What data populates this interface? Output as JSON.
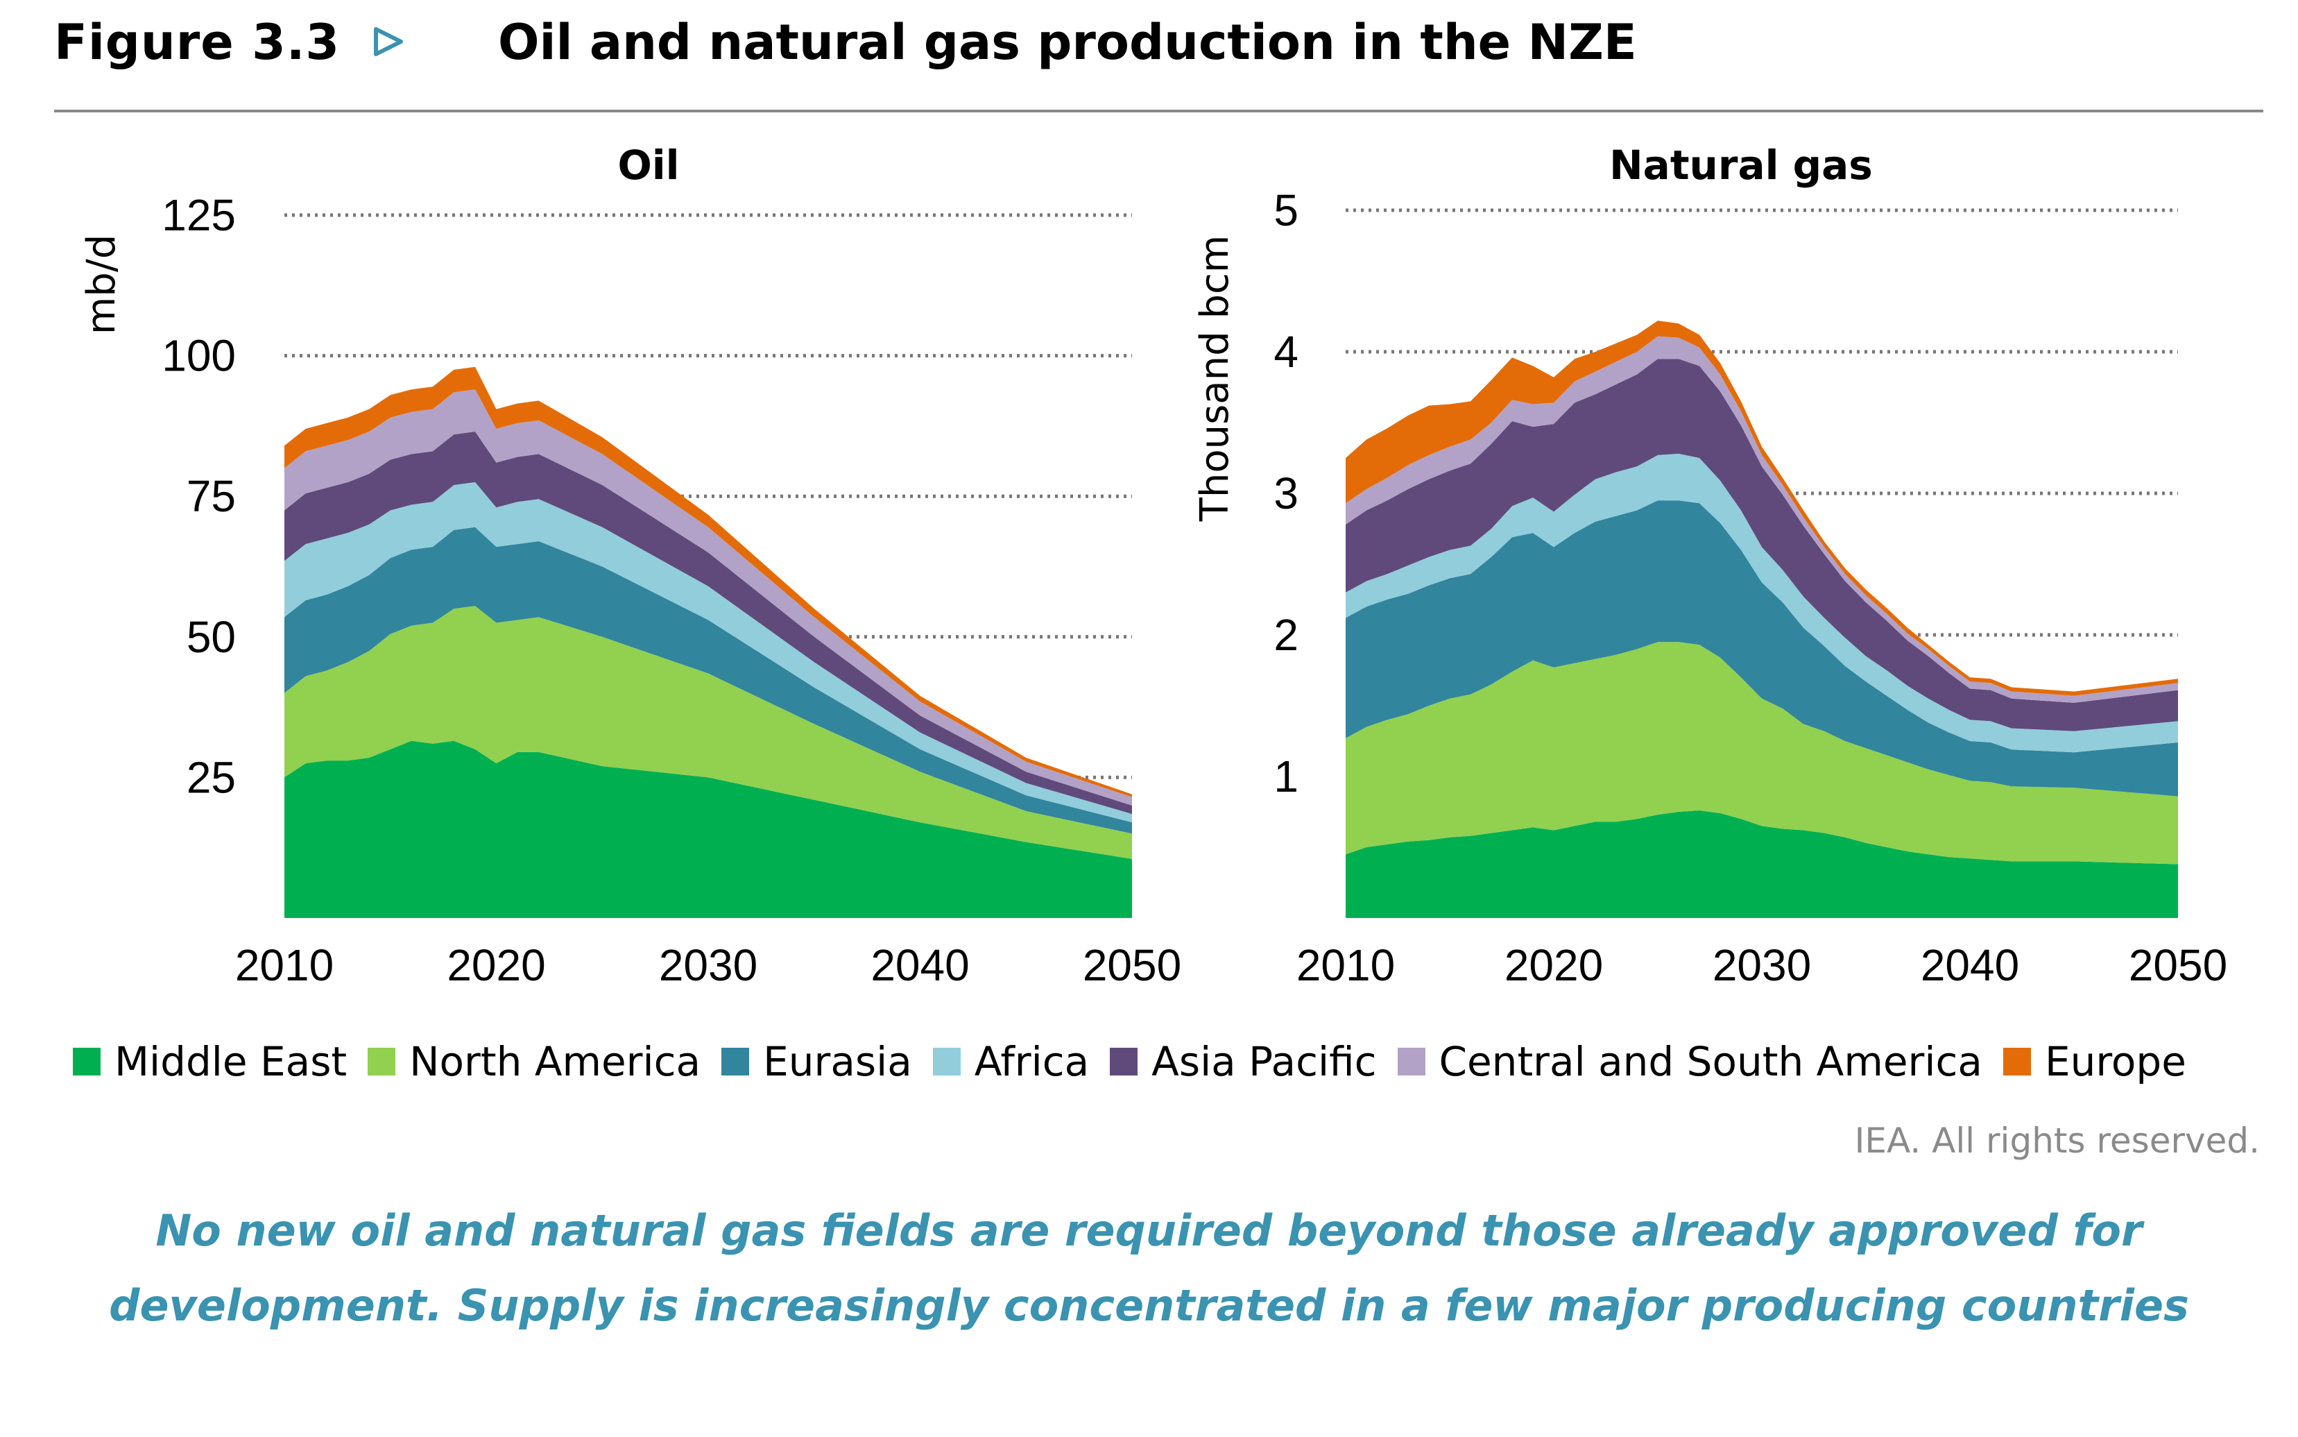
{
  "header": {
    "figure_label": "Figure 3.3",
    "title": "Oil and natural gas production in the NZE",
    "accent_color": "#3a93b0"
  },
  "legend": [
    {
      "name": "Middle East",
      "color": "#00b050"
    },
    {
      "name": "North America",
      "color": "#92d050"
    },
    {
      "name": "Eurasia",
      "color": "#31859c"
    },
    {
      "name": "Africa",
      "color": "#92cddc"
    },
    {
      "name": "Asia Pacific",
      "color": "#604a7b"
    },
    {
      "name": "Central and South America",
      "color": "#b3a2c7"
    },
    {
      "name": "Europe",
      "color": "#e36c09"
    }
  ],
  "chart_data": [
    {
      "type": "area",
      "stacked": true,
      "title": "Oil",
      "ylabel": "mb/d",
      "xlabel": "",
      "xlim": [
        2010,
        2050
      ],
      "ylim": [
        0,
        125
      ],
      "xticks": [
        2010,
        2020,
        2030,
        2040,
        2050
      ],
      "yticks": [
        25,
        50,
        75,
        100,
        125
      ],
      "grid": "horizontal dotted",
      "x": [
        2010,
        2011,
        2012,
        2013,
        2014,
        2015,
        2016,
        2017,
        2018,
        2019,
        2020,
        2021,
        2022,
        2025,
        2030,
        2035,
        2040,
        2045,
        2050
      ],
      "series": [
        {
          "name": "Middle East",
          "values": [
            25,
            27.5,
            28,
            28,
            28.5,
            30,
            31.5,
            31,
            31.5,
            30,
            27.5,
            29.5,
            29.5,
            27,
            25,
            21,
            17,
            13.5,
            10.5
          ]
        },
        {
          "name": "North America",
          "values": [
            15,
            15.5,
            16,
            17.5,
            19,
            20.5,
            20.5,
            21.5,
            23.5,
            25.5,
            25,
            23.5,
            24,
            23,
            18.5,
            13.5,
            9,
            5.5,
            4.5
          ]
        },
        {
          "name": "Eurasia",
          "values": [
            13.5,
            13.5,
            13.5,
            13.5,
            13.5,
            13.5,
            13.5,
            13.5,
            14,
            14,
            13.5,
            13.5,
            13.5,
            12.5,
            9.5,
            6.5,
            4,
            2.8,
            2
          ]
        },
        {
          "name": "Africa",
          "values": [
            10,
            10,
            10,
            9.5,
            9,
            8.5,
            8,
            8,
            8,
            8,
            7,
            7.5,
            7.5,
            7,
            6,
            4.5,
            3,
            2.2,
            1.5
          ]
        },
        {
          "name": "Asia Pacific",
          "values": [
            9,
            9,
            9,
            9,
            9,
            9,
            9,
            9,
            9,
            9,
            8,
            8,
            8,
            7.5,
            6,
            4.5,
            3,
            2,
            1.5
          ]
        },
        {
          "name": "Central and South America",
          "values": [
            7.5,
            7.5,
            7.5,
            7.5,
            7.5,
            7.5,
            7.5,
            7.5,
            7.5,
            7.5,
            6,
            6,
            6,
            5.5,
            4.5,
            3.5,
            2.5,
            1.8,
            1.5
          ]
        },
        {
          "name": "Europe",
          "values": [
            4,
            4,
            4,
            4,
            4,
            4,
            4,
            4,
            4,
            4,
            3.5,
            3.5,
            3.5,
            3,
            2.2,
            1.5,
            1,
            0.7,
            0.5
          ]
        }
      ]
    },
    {
      "type": "area",
      "stacked": true,
      "title": "Natural gas",
      "ylabel": "Thousand bcm",
      "xlabel": "",
      "xlim": [
        2010,
        2050
      ],
      "ylim": [
        0,
        5
      ],
      "xticks": [
        2010,
        2020,
        2030,
        2040,
        2050
      ],
      "yticks": [
        1,
        2,
        3,
        4,
        5
      ],
      "grid": "horizontal dotted",
      "x": [
        2010,
        2011,
        2012,
        2013,
        2014,
        2015,
        2016,
        2017,
        2018,
        2019,
        2020,
        2021,
        2022,
        2023,
        2024,
        2025,
        2026,
        2027,
        2028,
        2029,
        2030,
        2031,
        2032,
        2033,
        2034,
        2035,
        2036,
        2037,
        2038,
        2039,
        2040,
        2041,
        2042,
        2045,
        2050
      ],
      "series": [
        {
          "name": "Middle East",
          "values": [
            0.45,
            0.5,
            0.52,
            0.54,
            0.55,
            0.57,
            0.58,
            0.6,
            0.62,
            0.64,
            0.62,
            0.65,
            0.68,
            0.68,
            0.7,
            0.73,
            0.75,
            0.76,
            0.74,
            0.7,
            0.65,
            0.63,
            0.62,
            0.6,
            0.57,
            0.53,
            0.5,
            0.47,
            0.45,
            0.43,
            0.42,
            0.41,
            0.4,
            0.4,
            0.38
          ]
        },
        {
          "name": "North America",
          "values": [
            0.82,
            0.85,
            0.88,
            0.9,
            0.95,
            0.98,
            1,
            1.05,
            1.12,
            1.18,
            1.15,
            1.15,
            1.15,
            1.18,
            1.2,
            1.22,
            1.2,
            1.17,
            1.1,
            1,
            0.9,
            0.85,
            0.75,
            0.72,
            0.68,
            0.67,
            0.65,
            0.63,
            0.6,
            0.58,
            0.55,
            0.55,
            0.53,
            0.52,
            0.48
          ]
        },
        {
          "name": "Eurasia",
          "values": [
            0.85,
            0.85,
            0.85,
            0.85,
            0.85,
            0.85,
            0.85,
            0.9,
            0.95,
            0.9,
            0.85,
            0.92,
            0.97,
            0.98,
            0.98,
            1,
            1,
            1,
            0.95,
            0.9,
            0.82,
            0.75,
            0.68,
            0.6,
            0.53,
            0.47,
            0.42,
            0.37,
            0.33,
            0.3,
            0.28,
            0.28,
            0.26,
            0.25,
            0.38
          ]
        },
        {
          "name": "Africa",
          "values": [
            0.18,
            0.18,
            0.18,
            0.2,
            0.2,
            0.2,
            0.2,
            0.2,
            0.22,
            0.25,
            0.25,
            0.27,
            0.3,
            0.31,
            0.31,
            0.32,
            0.33,
            0.32,
            0.3,
            0.28,
            0.25,
            0.23,
            0.22,
            0.2,
            0.2,
            0.18,
            0.18,
            0.17,
            0.17,
            0.16,
            0.15,
            0.15,
            0.15,
            0.15,
            0.15
          ]
        },
        {
          "name": "Asia Pacific",
          "values": [
            0.48,
            0.5,
            0.52,
            0.54,
            0.55,
            0.56,
            0.58,
            0.6,
            0.6,
            0.5,
            0.62,
            0.65,
            0.6,
            0.62,
            0.65,
            0.68,
            0.67,
            0.65,
            0.63,
            0.6,
            0.57,
            0.53,
            0.5,
            0.45,
            0.4,
            0.38,
            0.35,
            0.32,
            0.3,
            0.26,
            0.22,
            0.22,
            0.21,
            0.2,
            0.22
          ]
        },
        {
          "name": "Central and South America",
          "values": [
            0.15,
            0.15,
            0.16,
            0.17,
            0.17,
            0.17,
            0.17,
            0.15,
            0.15,
            0.16,
            0.15,
            0.15,
            0.16,
            0.16,
            0.16,
            0.16,
            0.15,
            0.13,
            0.12,
            0.1,
            0.08,
            0.07,
            0.06,
            0.05,
            0.05,
            0.05,
            0.05,
            0.05,
            0.05,
            0.05,
            0.05,
            0.05,
            0.05,
            0.05,
            0.05
          ]
        },
        {
          "name": "Europe",
          "values": [
            0.32,
            0.35,
            0.35,
            0.35,
            0.35,
            0.3,
            0.27,
            0.3,
            0.3,
            0.27,
            0.18,
            0.16,
            0.14,
            0.13,
            0.12,
            0.11,
            0.1,
            0.09,
            0.08,
            0.07,
            0.06,
            0.05,
            0.05,
            0.04,
            0.04,
            0.04,
            0.04,
            0.04,
            0.03,
            0.03,
            0.03,
            0.03,
            0.03,
            0.03,
            0.03
          ]
        }
      ]
    }
  ],
  "footer": {
    "rights": "IEA. All rights reserved.",
    "caption_lines": [
      "No new oil and natural gas fields are required beyond those already approved for",
      "development. Supply is increasingly concentrated in a few major producing countries"
    ]
  }
}
